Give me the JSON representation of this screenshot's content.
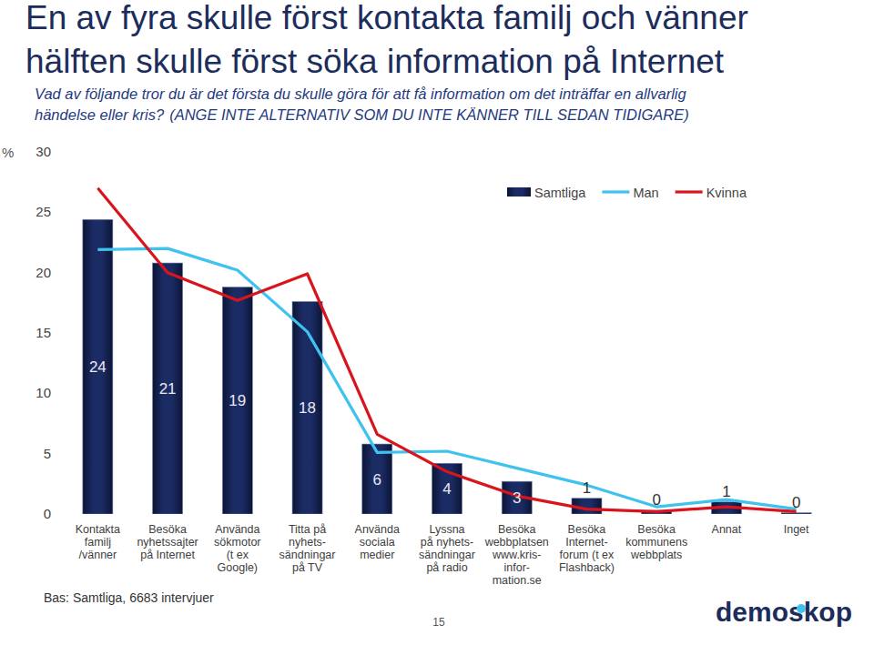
{
  "chart_data": {
    "type": "bar",
    "title": "En av fyra skulle först kontakta familj och vänner\nhälften skulle först söka information på Internet",
    "subtitle": "Vad av följande tror du är det första du skulle göra för att få information om det inträffar en allvarlig\nhändelse eller kris?",
    "annotations": [
      "(ANGE INTE ALTERNATIV SOM DU INTE KÄNNER TILL SEDAN TIDIGARE)",
      "Bas: Samtliga, 6683 intervjuer",
      "15",
      "demoskop"
    ],
    "y_label": "%",
    "categories": [
      "Kontakta\nfamilj\n/vänner",
      "Besöka\nnyhetssajter\npå Internet",
      "Använda\nsökmotor\n(t ex\nGoogle)",
      "Titta på\nnyhets-\nsändningar\npå TV",
      "Använda\nsociala\nmedier",
      "Lyssna\npå nyhets-\nsändningar\npå radio",
      "Besöka\nwebbplatsen\nwww.kris-\ninfor-\nmation.se",
      "Besöka\nInternet-\nforum (t ex\nFlashback)",
      "Besöka\nkommunens\nwebbplats",
      "Annat",
      "Inget"
    ],
    "series": [
      {
        "name": "Samtliga",
        "type": "bar",
        "color": "#1b2b63",
        "values": [
          24.4,
          20.8,
          18.8,
          17.6,
          5.8,
          4.2,
          2.7,
          1.3,
          0.3,
          1.0,
          0.1
        ],
        "value_labels": [
          "24",
          "21",
          "19",
          "18",
          "6",
          "4",
          "3",
          "1",
          "0",
          "1",
          "0"
        ]
      },
      {
        "name": "Man",
        "type": "line",
        "color": "#3fc3ee",
        "values": [
          21.9,
          22.0,
          20.2,
          15.1,
          5.1,
          5.2,
          3.8,
          2.4,
          0.6,
          1.2,
          0.4
        ]
      },
      {
        "name": "Kvinna",
        "type": "line",
        "color": "#d9141c",
        "values": [
          27.0,
          20.0,
          17.7,
          19.9,
          6.6,
          3.5,
          1.5,
          0.4,
          0.2,
          0.6,
          0.2
        ]
      }
    ],
    "ylim": [
      0,
      30
    ],
    "yticks": [
      0,
      5,
      10,
      15,
      20,
      25,
      30
    ],
    "grid": false,
    "legend": "upper right",
    "data_labels": true
  }
}
